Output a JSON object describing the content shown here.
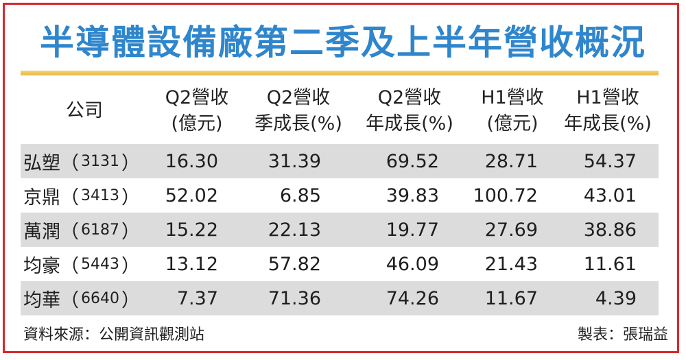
{
  "title": "半導體設備廠第二季及上半年營收概況",
  "headers": [
    {
      "line1": "公司",
      "line2": ""
    },
    {
      "line1": "Q2營收",
      "line2": "(億元)"
    },
    {
      "line1": "Q2營收",
      "line2": "季成長(%)"
    },
    {
      "line1": "Q2營收",
      "line2": "年成長(%)"
    },
    {
      "line1": "H1營收",
      "line2": "(億元)"
    },
    {
      "line1": "H1營收",
      "line2": "年成長(%)"
    }
  ],
  "rows": [
    {
      "name": "弘塑",
      "code": "3131",
      "q2_rev": "16.30",
      "q2_qoq": "31.39",
      "q2_yoy": "69.52",
      "h1_rev": "28.71",
      "h1_yoy": "54.37"
    },
    {
      "name": "京鼎",
      "code": "3413",
      "q2_rev": "52.02",
      "q2_qoq": "6.85",
      "q2_yoy": "39.83",
      "h1_rev": "100.72",
      "h1_yoy": "43.01"
    },
    {
      "name": "萬潤",
      "code": "6187",
      "q2_rev": "15.22",
      "q2_qoq": "22.13",
      "q2_yoy": "19.77",
      "h1_rev": "27.69",
      "h1_yoy": "38.86"
    },
    {
      "name": "均豪",
      "code": "5443",
      "q2_rev": "13.12",
      "q2_qoq": "57.82",
      "q2_yoy": "46.09",
      "h1_rev": "21.43",
      "h1_yoy": "11.61"
    },
    {
      "name": "均華",
      "code": "6640",
      "q2_rev": "7.37",
      "q2_qoq": "71.36",
      "q2_yoy": "74.26",
      "h1_rev": "11.67",
      "h1_yoy": "4.39"
    }
  ],
  "footer": {
    "source": "資料來源：公開資訊觀測站",
    "maker": "製表：張瑞益"
  },
  "colors": {
    "title": "#2f86cc",
    "border": "#d9262b",
    "rule": "#e8b940",
    "shade": "#dcdcdc"
  }
}
